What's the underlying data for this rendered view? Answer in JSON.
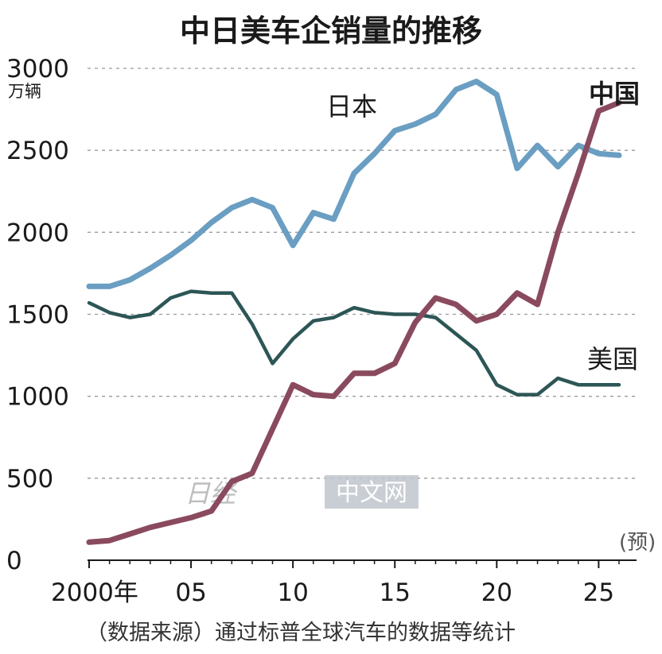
{
  "chart_data": {
    "type": "line",
    "title": "中日美车企销量的推移",
    "y_unit": "万辆",
    "ylim": [
      0,
      3000
    ],
    "y_ticks": [
      0,
      500,
      1000,
      1500,
      2000,
      2500,
      3000
    ],
    "x_range": [
      2000,
      2026
    ],
    "x_ticks": [
      {
        "x": 2000,
        "label": "2000年"
      },
      {
        "x": 2005,
        "label": "05"
      },
      {
        "x": 2010,
        "label": "10"
      },
      {
        "x": 2015,
        "label": "15"
      },
      {
        "x": 2020,
        "label": "20"
      },
      {
        "x": 2025,
        "label": "25"
      }
    ],
    "grid": true,
    "forecast_note": "(预)",
    "source_note": "（数据来源）通过标普全球汽车的数据等统计",
    "series": [
      {
        "name": "日本",
        "color": "#6a9ec2",
        "x": [
          2000,
          2001,
          2002,
          2003,
          2004,
          2005,
          2006,
          2007,
          2008,
          2009,
          2010,
          2011,
          2012,
          2013,
          2014,
          2015,
          2016,
          2017,
          2018,
          2019,
          2020,
          2021,
          2022,
          2023,
          2024,
          2025,
          2026
        ],
        "values": [
          1670,
          1670,
          1710,
          1780,
          1860,
          1950,
          2060,
          2150,
          2200,
          2150,
          1920,
          2120,
          2080,
          2360,
          2480,
          2620,
          2660,
          2720,
          2870,
          2920,
          2840,
          2390,
          2530,
          2400,
          2530,
          2480,
          2470
        ]
      },
      {
        "name": "美国",
        "color": "#2d5656",
        "x": [
          2000,
          2001,
          2002,
          2003,
          2004,
          2005,
          2006,
          2007,
          2008,
          2009,
          2010,
          2011,
          2012,
          2013,
          2014,
          2015,
          2016,
          2017,
          2018,
          2019,
          2020,
          2021,
          2022,
          2023,
          2024,
          2025,
          2026
        ],
        "values": [
          1570,
          1510,
          1480,
          1500,
          1600,
          1640,
          1630,
          1630,
          1440,
          1200,
          1350,
          1460,
          1480,
          1540,
          1510,
          1500,
          1500,
          1480,
          1380,
          1280,
          1070,
          1010,
          1010,
          1110,
          1070,
          1070,
          1070
        ]
      },
      {
        "name": "中国",
        "color": "#8a4a5e",
        "x": [
          2000,
          2001,
          2002,
          2003,
          2004,
          2005,
          2006,
          2007,
          2008,
          2009,
          2010,
          2011,
          2012,
          2013,
          2014,
          2015,
          2016,
          2017,
          2018,
          2019,
          2020,
          2021,
          2022,
          2023,
          2024,
          2025,
          2026
        ],
        "values": [
          110,
          120,
          160,
          200,
          230,
          260,
          300,
          480,
          530,
          800,
          1070,
          1010,
          1000,
          1140,
          1140,
          1200,
          1450,
          1600,
          1560,
          1460,
          1500,
          1630,
          1560,
          2000,
          2360,
          2740,
          2790
        ]
      }
    ]
  },
  "watermark": {
    "left_text": "日经",
    "right_text": "中文网"
  }
}
